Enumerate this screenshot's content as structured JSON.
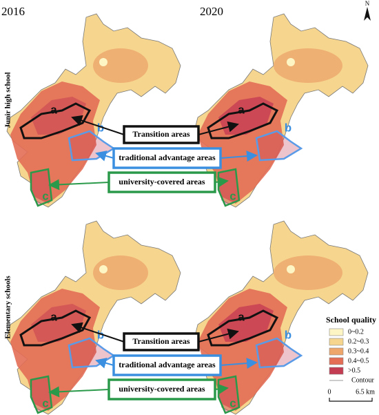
{
  "years": [
    "2016",
    "2020"
  ],
  "rows": [
    {
      "label": "Junir high school",
      "callouts": [
        "Transition areas",
        "traditional advantage areas",
        "university-covered areas"
      ]
    },
    {
      "label": "Elementary schools",
      "callouts": [
        "Transition areas",
        "traditional advantage areas",
        "university-covered areas"
      ]
    }
  ],
  "region_labels": [
    "a",
    "b",
    "c"
  ],
  "legend": {
    "title": "School quality",
    "items": [
      {
        "label": "0~0.2",
        "color": "#fdf5c4"
      },
      {
        "label": "0.2~0.3",
        "color": "#f6d68f"
      },
      {
        "label": "0.3~0.4",
        "color": "#eea66b"
      },
      {
        "label": "0.4~0.5",
        "color": "#e36d55"
      },
      {
        "label": ">0.5",
        "color": "#c43c52"
      }
    ],
    "contour": "Contour"
  },
  "scale": [
    "0",
    "6.5 km"
  ],
  "north": "N"
}
